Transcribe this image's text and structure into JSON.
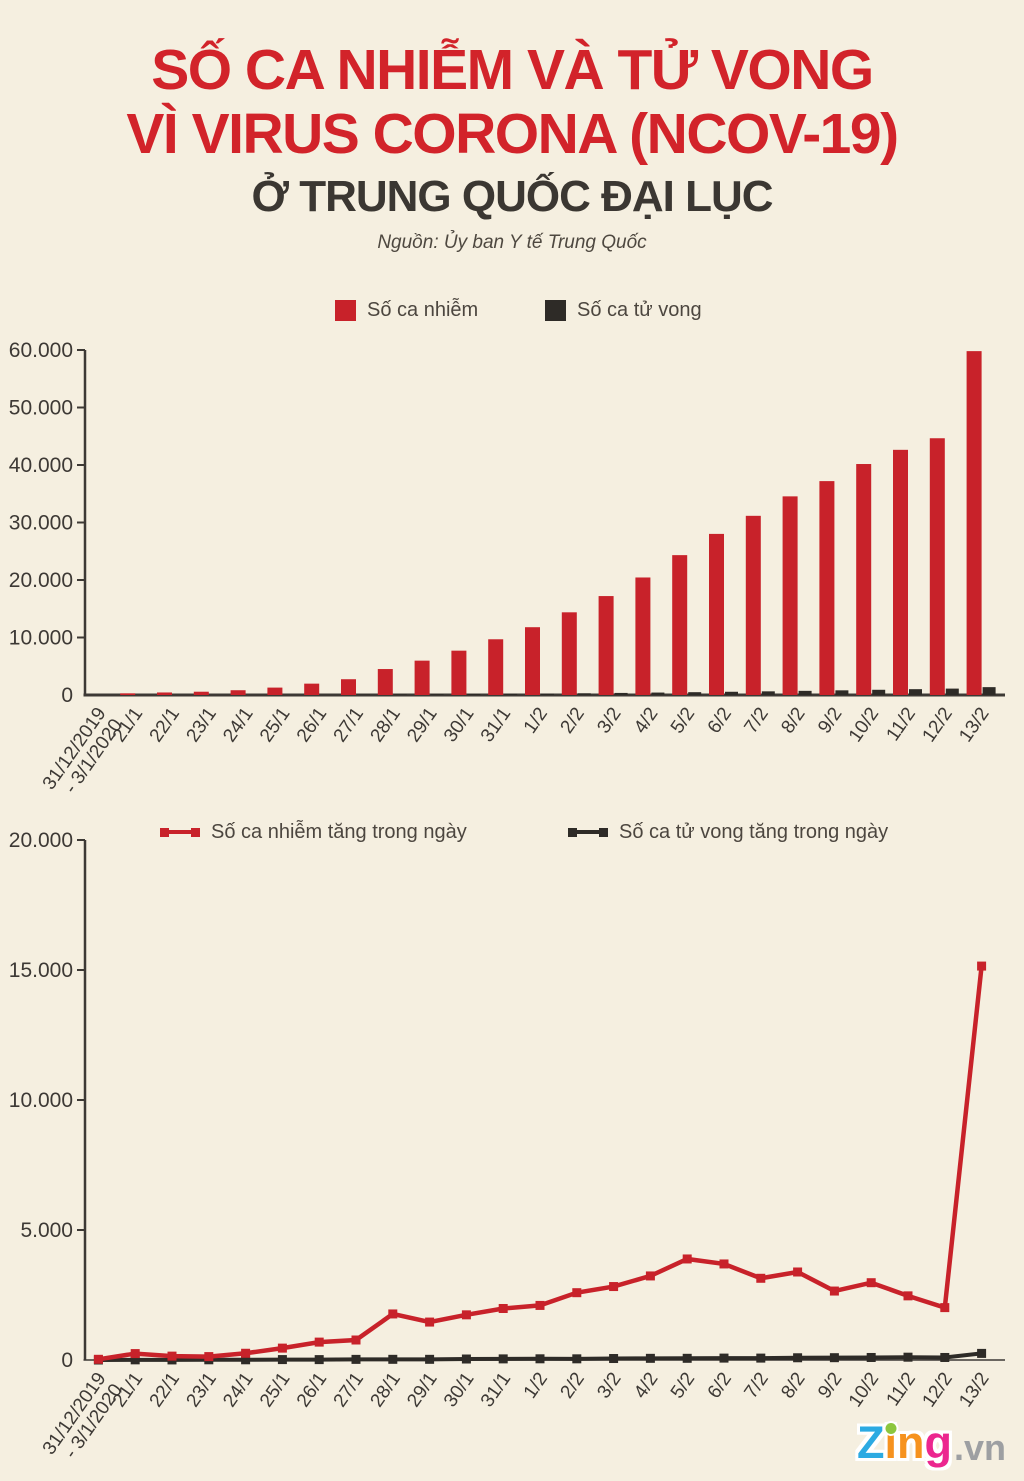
{
  "header": {
    "title_line1": "SỐ CA NHIỄM VÀ TỬ VONG",
    "title_line2": "VÌ VIRUS CORONA (NCOV-19)",
    "subtitle": "Ở TRUNG QUỐC ĐẠI LỤC",
    "source": "Nguồn: Ủy ban Y tế Trung Quốc"
  },
  "colors": {
    "background": "#f5efe0",
    "title_red": "#d2232a",
    "cases_red": "#c8222a",
    "deaths_dark": "#2e2b27",
    "axis": "#3d3935",
    "legend_text": "#4c463f"
  },
  "chart_data": [
    {
      "type": "bar",
      "title": "",
      "legend": [
        {
          "label": "Số ca nhiễm",
          "color": "#c8222a"
        },
        {
          "label": "Số ca tử vong",
          "color": "#2e2b27"
        }
      ],
      "legend_position": "top",
      "grid": false,
      "categories": [
        "31/12/2019\n- 3/1/2020",
        "21/1",
        "22/1",
        "23/1",
        "24/1",
        "25/1",
        "26/1",
        "27/1",
        "28/1",
        "29/1",
        "30/1",
        "31/1",
        "1/2",
        "2/2",
        "3/2",
        "4/2",
        "5/2",
        "6/2",
        "7/2",
        "8/2",
        "9/2",
        "10/2",
        "11/2",
        "12/2",
        "13/2"
      ],
      "series": [
        {
          "name": "Số ca nhiễm",
          "color": "#c8222a",
          "values": [
            44,
            291,
            440,
            571,
            830,
            1287,
            1975,
            2744,
            4515,
            5974,
            7711,
            9692,
            11791,
            14380,
            17205,
            20438,
            24324,
            28018,
            31161,
            34546,
            37198,
            40171,
            42638,
            44653,
            59804
          ]
        },
        {
          "name": "Số ca tử vong",
          "color": "#2e2b27",
          "values": [
            0,
            6,
            9,
            17,
            25,
            41,
            56,
            80,
            106,
            132,
            170,
            213,
            259,
            304,
            361,
            425,
            490,
            563,
            636,
            722,
            811,
            908,
            1016,
            1113,
            1367
          ]
        }
      ],
      "ylim": [
        0,
        60000
      ],
      "ytick_step": 10000,
      "ytick_labels": [
        "0",
        "10.000",
        "20.000",
        "30.000",
        "40.000",
        "50.000",
        "60.000"
      ],
      "xlabel": "",
      "ylabel": ""
    },
    {
      "type": "line",
      "title": "",
      "legend": [
        {
          "label": "Số ca nhiễm tăng trong ngày",
          "color": "#c8222a"
        },
        {
          "label": "Số ca tử vong tăng trong ngày",
          "color": "#2e2b27"
        }
      ],
      "legend_position": "top",
      "grid": false,
      "categories": [
        "31/12/2019\n- 3/1/2020",
        "21/1",
        "22/1",
        "23/1",
        "24/1",
        "25/1",
        "26/1",
        "27/1",
        "28/1",
        "29/1",
        "30/1",
        "31/1",
        "1/2",
        "2/2",
        "3/2",
        "4/2",
        "5/2",
        "6/2",
        "7/2",
        "8/2",
        "9/2",
        "10/2",
        "11/2",
        "12/2",
        "13/2"
      ],
      "series": [
        {
          "name": "Số ca nhiễm tăng trong ngày",
          "color": "#c8222a",
          "values": [
            27,
            247,
            149,
            131,
            259,
            457,
            688,
            769,
            1771,
            1459,
            1737,
            1981,
            2099,
            2589,
            2825,
            3233,
            3886,
            3694,
            3143,
            3385,
            2652,
            2973,
            2467,
            2015,
            15151
          ]
        },
        {
          "name": "Số ca tử vong tăng trong ngày",
          "color": "#2e2b27",
          "values": [
            0,
            6,
            3,
            8,
            8,
            16,
            15,
            24,
            26,
            26,
            38,
            43,
            46,
            45,
            57,
            64,
            65,
            73,
            73,
            86,
            89,
            97,
            108,
            97,
            254
          ]
        }
      ],
      "ylim": [
        0,
        20000
      ],
      "ytick_step": 5000,
      "ytick_labels": [
        "0",
        "5.000",
        "10.000",
        "15.000",
        "20.000"
      ],
      "xlabel": "",
      "ylabel": ""
    }
  ],
  "footer": {
    "brand_letters": [
      {
        "char": "Z",
        "color": "#2caae2"
      },
      {
        "char": "i",
        "color": "#f6921e",
        "dot_color": "#8cc63e"
      },
      {
        "char": "n",
        "color": "#f6921e"
      },
      {
        "char": "g",
        "color": "#ec268f"
      }
    ],
    "brand_suffix": ".vn",
    "brand_suffix_color": "#9d9fa2"
  }
}
